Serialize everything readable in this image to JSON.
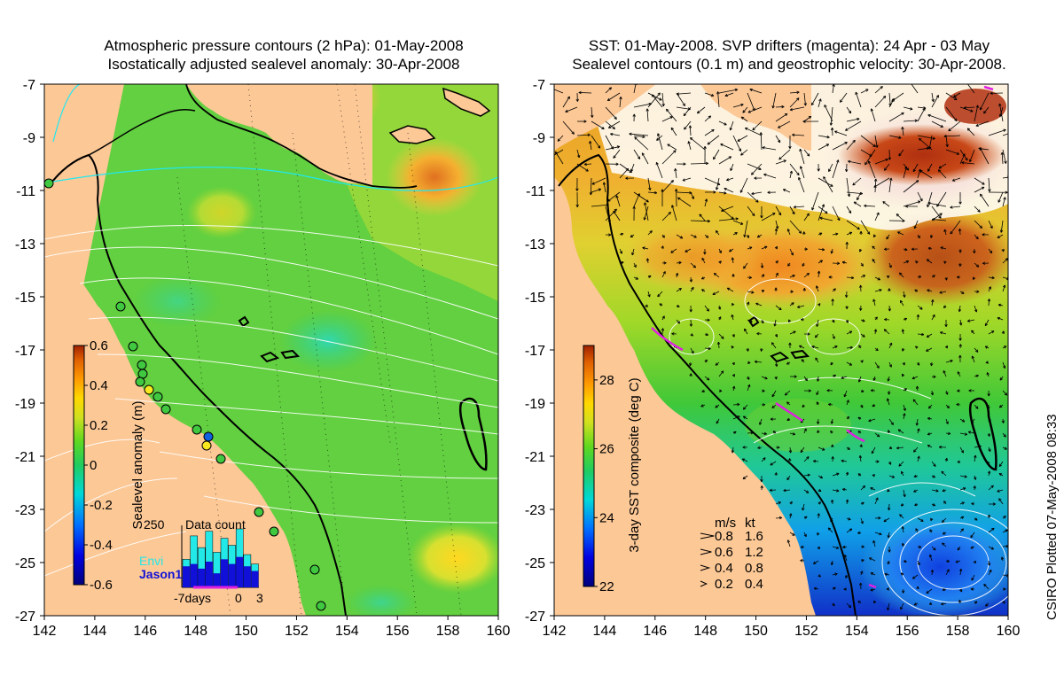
{
  "left_panel": {
    "title_line1": "Atmospheric pressure contours (2 hPa): 01-May-2008",
    "title_line2": "Isostatically adjusted sealevel anomaly: 30-Apr-2008",
    "x_ticks": [
      "142",
      "144",
      "146",
      "148",
      "150",
      "152",
      "154",
      "156",
      "158",
      "160"
    ],
    "y_ticks": [
      "-7",
      "-9",
      "-11",
      "-13",
      "-15",
      "-17",
      "-19",
      "-21",
      "-23",
      "-25",
      "-27"
    ],
    "colorbar": {
      "label": "Sealevel anomaly (m)",
      "ticks": [
        "0.6",
        "0.4",
        "0.2",
        "0",
        "-0.2",
        "-0.4",
        "-0.6"
      ],
      "range": [
        -0.6,
        0.6
      ]
    },
    "histogram": {
      "title": "Data count",
      "ymax_label": "250",
      "x_labels": [
        "-7days",
        "0",
        "3"
      ],
      "legend": [
        {
          "name": "Envi",
          "color": "#22e8e8"
        },
        {
          "name": "Jason1",
          "color": "#1010d8"
        }
      ],
      "envi_counts": [
        120,
        220,
        170,
        240,
        150,
        210,
        180,
        250,
        140,
        100
      ],
      "jason_counts": [
        90,
        100,
        80,
        110,
        60,
        120,
        100,
        130,
        90,
        70
      ]
    }
  },
  "right_panel": {
    "title_line1": "SST: 01-May-2008. SVP drifters (magenta): 24 Apr - 03 May",
    "title_line2": "Sealevel contours (0.1 m) and geostrophic velocity: 30-Apr-2008.",
    "x_ticks": [
      "142",
      "144",
      "146",
      "148",
      "150",
      "152",
      "154",
      "156",
      "158",
      "160"
    ],
    "y_ticks": [
      "-7",
      "-9",
      "-11",
      "-13",
      "-15",
      "-17",
      "-19",
      "-21",
      "-23",
      "-25",
      "-27"
    ],
    "colorbar": {
      "label": "3-day SST composite (deg C)",
      "ticks": [
        "28",
        "26",
        "24",
        "22"
      ],
      "range": [
        22,
        29
      ]
    },
    "velocity_key": {
      "header_ms": "m/s",
      "header_kt": "kt",
      "rows": [
        {
          "ms": "0.8",
          "kt": "1.6"
        },
        {
          "ms": "0.6",
          "kt": "1.2"
        },
        {
          "ms": "0.4",
          "kt": "0.8"
        },
        {
          "ms": "0.2",
          "kt": "0.4"
        }
      ]
    }
  },
  "credit": "CSIRO Plotted 07-May-2008 08:33",
  "colors": {
    "land": "#fcc896",
    "sla_scale": [
      "#00007c",
      "#0000e0",
      "#0070ff",
      "#00d8d8",
      "#20cc60",
      "#60d820",
      "#d0e020",
      "#ffd800",
      "#ff9a00",
      "#e06000",
      "#a02000"
    ],
    "sst_scale": [
      "#00007c",
      "#0000e0",
      "#0070ff",
      "#00d8d8",
      "#20cc60",
      "#60d820",
      "#d0e020",
      "#ffd800",
      "#ff9a00",
      "#e06000",
      "#a02000"
    ],
    "drifter": "#e020e0"
  }
}
